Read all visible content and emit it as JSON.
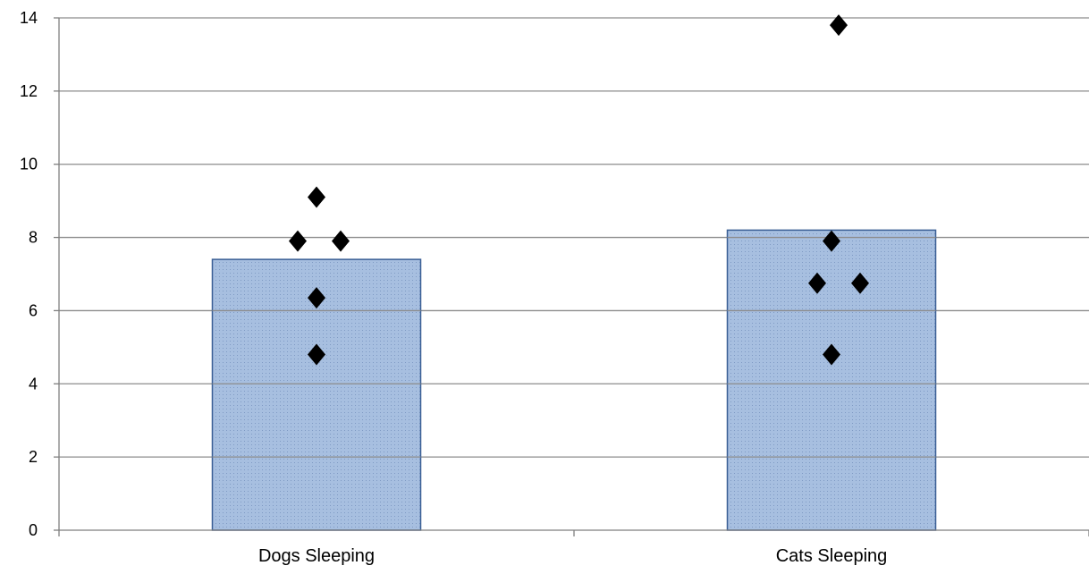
{
  "chart_data": {
    "type": "bar",
    "categories": [
      "Dogs Sleeping",
      "Cats Sleeping"
    ],
    "series": [
      {
        "values": [
          7.4,
          8.2
        ]
      }
    ],
    "points": [
      {
        "category": "Dogs Sleeping",
        "values": [
          9.1,
          7.9,
          7.9,
          6.35,
          4.8
        ]
      },
      {
        "category": "Cats Sleeping",
        "values": [
          13.8,
          7.9,
          6.75,
          6.75,
          4.8
        ]
      }
    ],
    "ylim": [
      0,
      14
    ],
    "yticks": [
      "0",
      "2",
      "4",
      "6",
      "8",
      "10",
      "12",
      "14"
    ],
    "grid": true,
    "legend": "none",
    "colors": {
      "bar_fill": "#a7bfe0",
      "bar_stroke": "#3a5f95",
      "bar_dots": "#7f9ac4",
      "marker": "#000000",
      "grid": "#8c8c8c",
      "axis": "#7f7f7f"
    }
  }
}
